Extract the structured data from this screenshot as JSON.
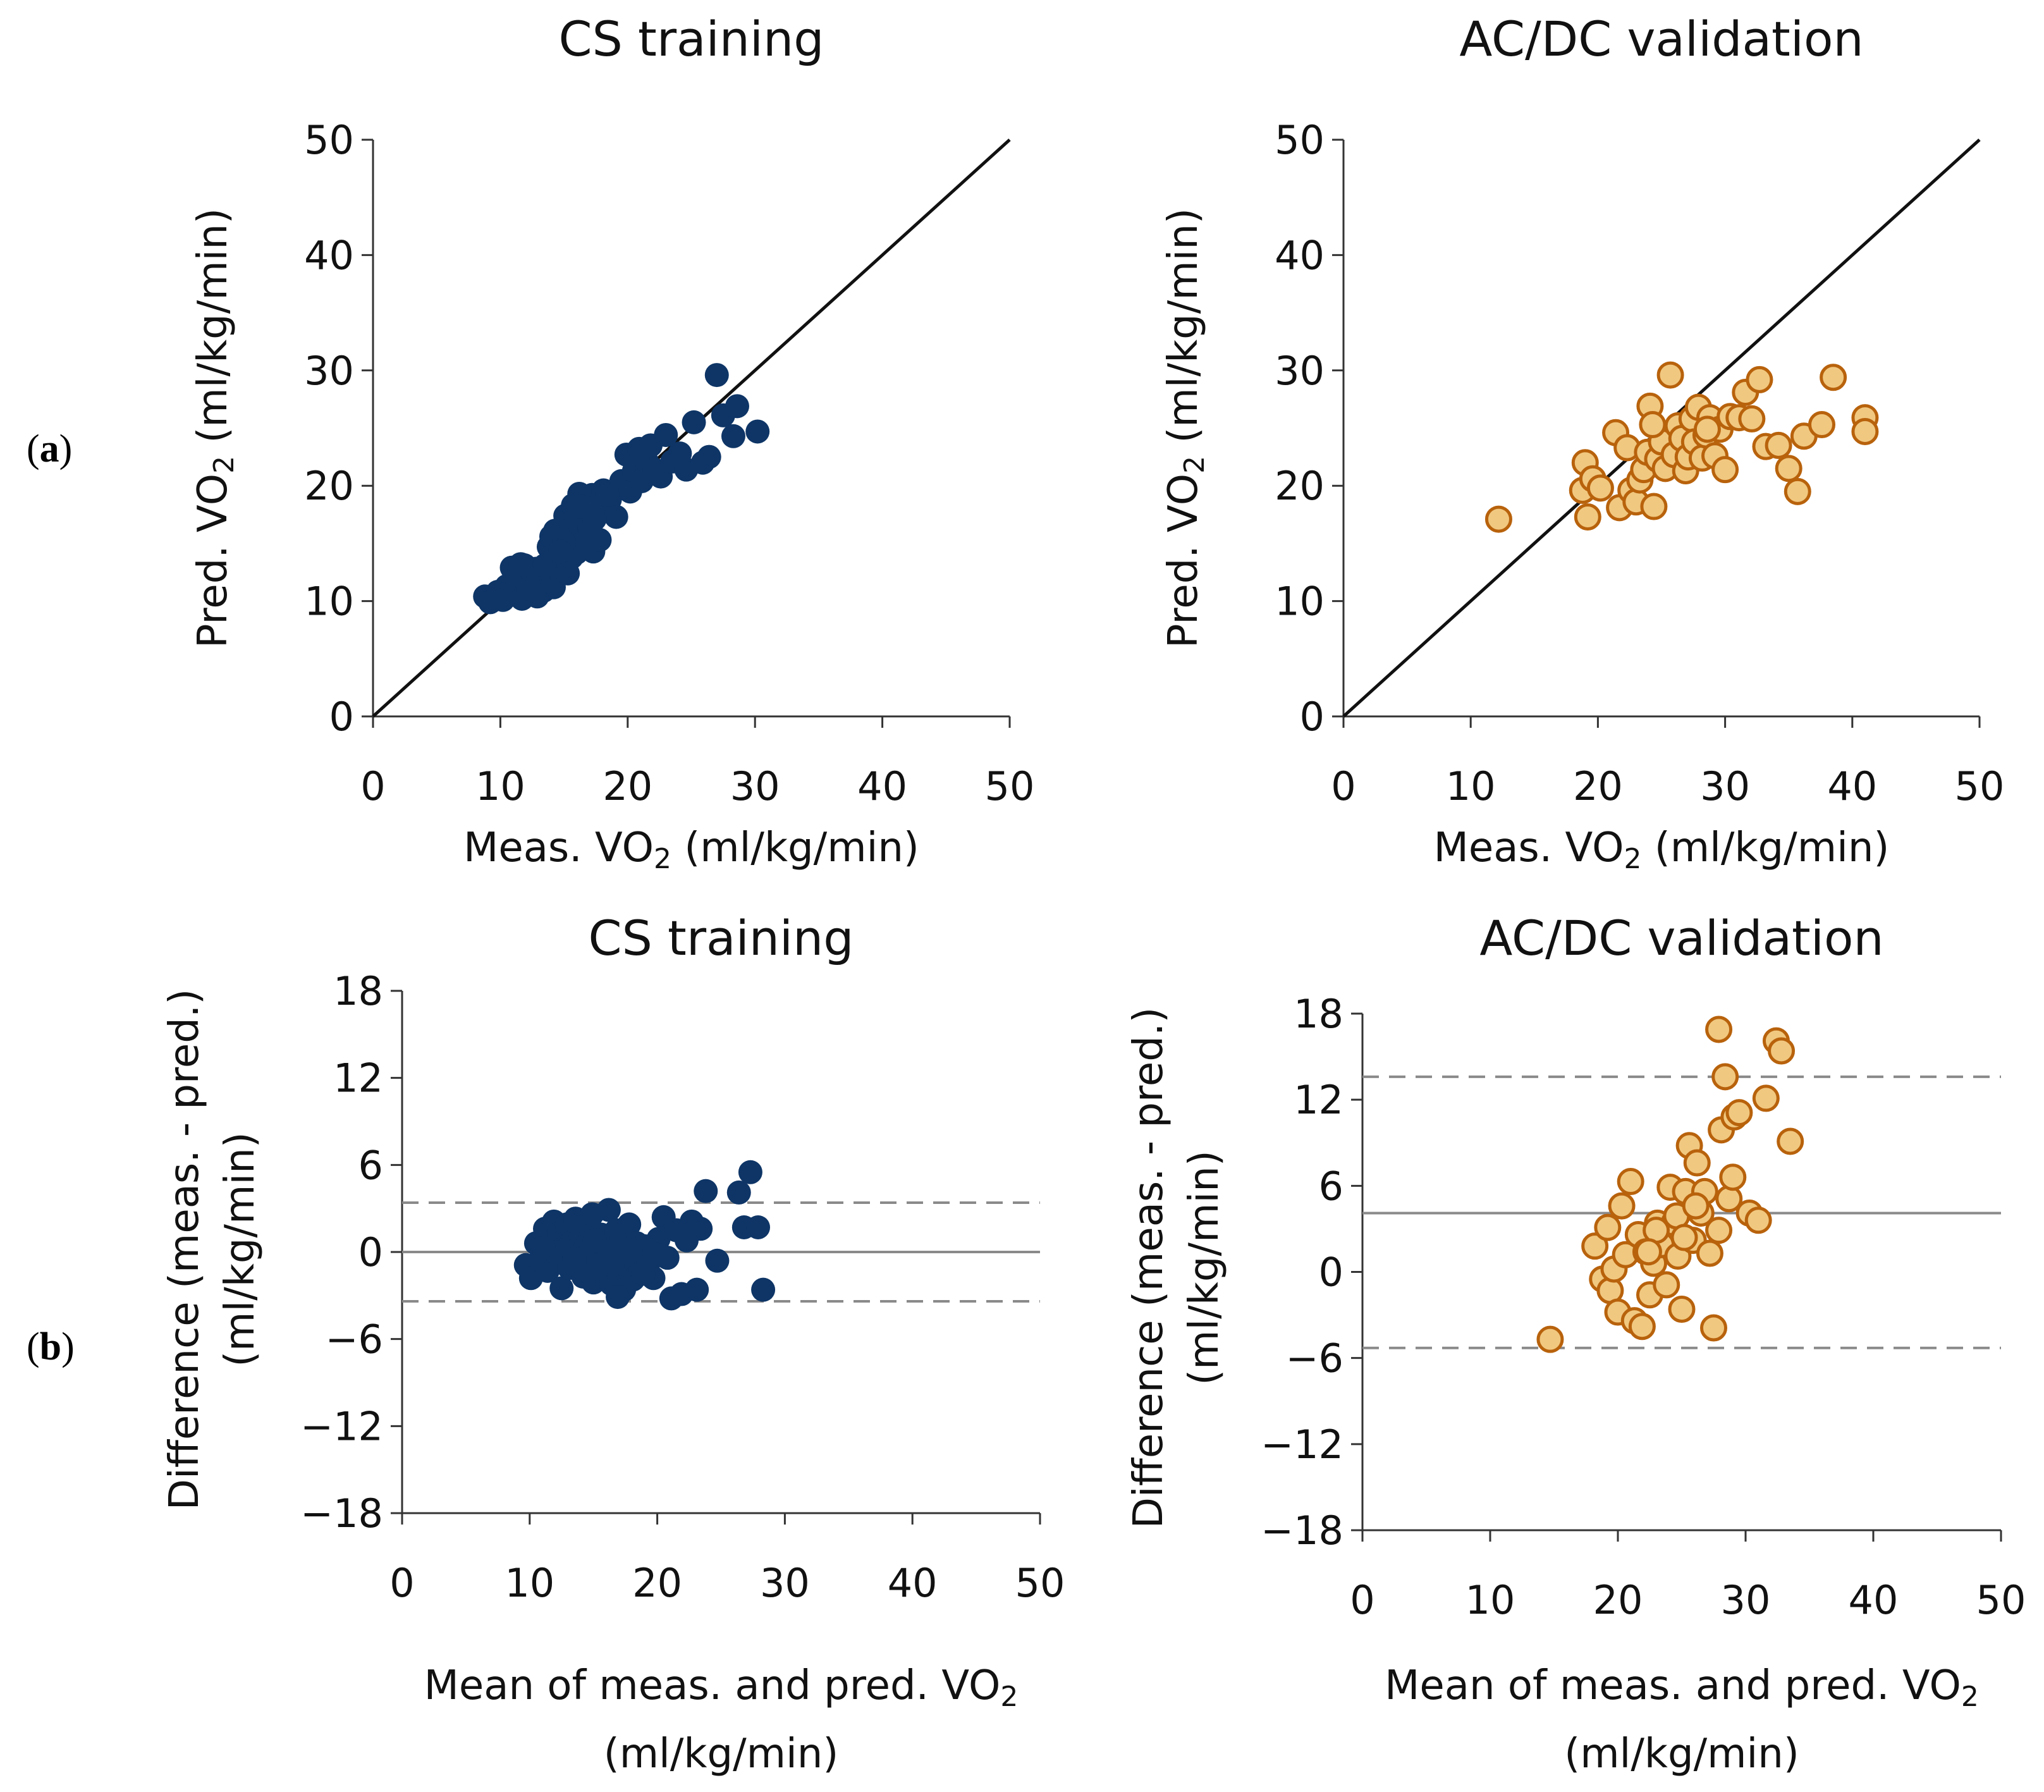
{
  "panel_labels": [
    {
      "open": "(",
      "letter": "a",
      "close": ")"
    },
    {
      "open": "(",
      "letter": "b",
      "close": ")"
    }
  ],
  "colors": {
    "train_fill": "#0e3566",
    "val_fill": "#f1c880",
    "val_edge": "#b8620c",
    "identity_line": "#111111",
    "mean_line": "#8a8a8a",
    "loa_line": "#8a8a8a"
  },
  "chart_data": [
    {
      "id": "a_train",
      "type": "scatter",
      "title": "CS training",
      "xlabel": {
        "pre": "Meas. VO",
        "sub": "2",
        "post": " (ml/kg/min)"
      },
      "ylabel": {
        "pre": "Pred. VO",
        "sub": "2",
        "post": " (ml/kg/min)"
      },
      "xlim": [
        0,
        50
      ],
      "ylim": [
        0,
        50
      ],
      "xticks": [
        "0",
        "10",
        "20",
        "30",
        "40",
        "50"
      ],
      "yticks": [
        "0",
        "10",
        "20",
        "30",
        "40",
        "50"
      ],
      "reference_line": {
        "from": [
          0,
          0
        ],
        "to": [
          50,
          50
        ]
      },
      "points": [
        [
          8.8,
          10.4
        ],
        [
          9.2,
          9.9
        ],
        [
          9.8,
          10.8
        ],
        [
          10.5,
          11.3
        ],
        [
          10.9,
          12.9
        ],
        [
          11.1,
          10.6
        ],
        [
          11.3,
          11.9
        ],
        [
          11.5,
          12.6
        ],
        [
          11.7,
          10.2
        ],
        [
          11.9,
          13.1
        ],
        [
          12.1,
          11.4
        ],
        [
          12.3,
          12.3
        ],
        [
          12.4,
          10.7
        ],
        [
          12.6,
          11.9
        ],
        [
          12.8,
          12.8
        ],
        [
          12.9,
          10.4
        ],
        [
          13.1,
          11.6
        ],
        [
          13.2,
          12.5
        ],
        [
          13.4,
          10.9
        ],
        [
          13.6,
          11.8
        ],
        [
          13.8,
          14.7
        ],
        [
          13.9,
          12.6
        ],
        [
          14.1,
          13.4
        ],
        [
          14.2,
          11.2
        ],
        [
          14.3,
          16.1
        ],
        [
          14.4,
          14.1
        ],
        [
          14.6,
          12.9
        ],
        [
          14.8,
          15.2
        ],
        [
          14.9,
          13.6
        ],
        [
          15.1,
          17.4
        ],
        [
          15.2,
          14.5
        ],
        [
          15.3,
          12.4
        ],
        [
          15.5,
          16.2
        ],
        [
          15.6,
          13.8
        ],
        [
          15.7,
          18.3
        ],
        [
          15.8,
          15.6
        ],
        [
          16.0,
          14.2
        ],
        [
          16.1,
          17.1
        ],
        [
          16.2,
          19.3
        ],
        [
          16.3,
          16.4
        ],
        [
          16.5,
          15.1
        ],
        [
          16.7,
          18.6
        ],
        [
          16.8,
          17.5
        ],
        [
          17.0,
          16.3
        ],
        [
          17.2,
          19.2
        ],
        [
          17.3,
          14.3
        ],
        [
          17.5,
          18.1
        ],
        [
          17.8,
          15.3
        ],
        [
          18.1,
          19.6
        ],
        [
          18.3,
          17.9
        ],
        [
          18.6,
          18.8
        ],
        [
          19.1,
          17.3
        ],
        [
          19.5,
          20.4
        ],
        [
          19.9,
          22.7
        ],
        [
          20.2,
          19.5
        ],
        [
          20.5,
          21.3
        ],
        [
          20.9,
          23.2
        ],
        [
          21.1,
          20.4
        ],
        [
          21.5,
          22.1
        ],
        [
          21.8,
          23.5
        ],
        [
          22.1,
          21.4
        ],
        [
          22.6,
          20.8
        ],
        [
          23.0,
          24.4
        ],
        [
          23.5,
          22.1
        ],
        [
          24.1,
          22.8
        ],
        [
          24.6,
          21.4
        ],
        [
          25.2,
          25.5
        ],
        [
          25.9,
          22.0
        ],
        [
          26.4,
          22.5
        ],
        [
          27.0,
          29.6
        ],
        [
          27.5,
          26.1
        ],
        [
          28.3,
          24.3
        ],
        [
          28.6,
          26.9
        ],
        [
          30.2,
          24.7
        ],
        [
          10.2,
          10.1
        ],
        [
          11.6,
          13.2
        ],
        [
          12.2,
          11.1
        ],
        [
          13.0,
          12.1
        ],
        [
          14.0,
          15.6
        ],
        [
          15.0,
          15.1
        ],
        [
          16.4,
          18.2
        ],
        [
          17.4,
          17.1
        ],
        [
          18.4,
          19.2
        ],
        [
          13.5,
          13.1
        ],
        [
          12.7,
          10.9
        ],
        [
          14.7,
          14.3
        ]
      ]
    },
    {
      "id": "a_val",
      "type": "scatter",
      "title": "AC/DC validation",
      "xlabel": {
        "pre": "Meas. VO",
        "sub": "2",
        "post": " (ml/kg/min)"
      },
      "ylabel": {
        "pre": "Pred. VO",
        "sub": "2",
        "post": " (ml/kg/min)"
      },
      "xlim": [
        0,
        50
      ],
      "ylim": [
        0,
        50
      ],
      "xticks": [
        "0",
        "10",
        "20",
        "30",
        "40",
        "50"
      ],
      "yticks": [
        "0",
        "10",
        "20",
        "30",
        "40",
        "50"
      ],
      "reference_line": {
        "from": [
          0,
          0
        ],
        "to": [
          50,
          50
        ]
      },
      "points": [
        [
          12.2,
          17.1
        ],
        [
          18.8,
          19.6
        ],
        [
          19.0,
          22.0
        ],
        [
          19.2,
          17.3
        ],
        [
          19.6,
          20.6
        ],
        [
          20.2,
          19.8
        ],
        [
          21.4,
          24.6
        ],
        [
          21.7,
          18.1
        ],
        [
          22.3,
          23.3
        ],
        [
          22.6,
          19.6
        ],
        [
          23.0,
          18.6
        ],
        [
          23.3,
          20.5
        ],
        [
          23.6,
          21.4
        ],
        [
          23.9,
          22.9
        ],
        [
          24.1,
          26.9
        ],
        [
          24.4,
          18.2
        ],
        [
          24.7,
          22.3
        ],
        [
          25.0,
          23.8
        ],
        [
          25.3,
          21.5
        ],
        [
          25.7,
          29.6
        ],
        [
          26.0,
          22.7
        ],
        [
          26.3,
          25.2
        ],
        [
          26.6,
          24.1
        ],
        [
          26.9,
          21.3
        ],
        [
          27.1,
          22.5
        ],
        [
          27.4,
          25.8
        ],
        [
          27.6,
          23.8
        ],
        [
          27.9,
          26.8
        ],
        [
          28.2,
          22.4
        ],
        [
          28.5,
          24.4
        ],
        [
          28.8,
          25.9
        ],
        [
          29.2,
          22.6
        ],
        [
          29.6,
          24.9
        ],
        [
          30.0,
          21.4
        ],
        [
          30.4,
          26.0
        ],
        [
          31.1,
          25.9
        ],
        [
          31.6,
          28.1
        ],
        [
          32.1,
          25.8
        ],
        [
          32.7,
          29.2
        ],
        [
          33.2,
          23.4
        ],
        [
          34.2,
          23.5
        ],
        [
          35.0,
          21.5
        ],
        [
          35.7,
          19.5
        ],
        [
          36.2,
          24.3
        ],
        [
          37.6,
          25.3
        ],
        [
          38.5,
          29.4
        ],
        [
          41.0,
          25.9
        ],
        [
          41.0,
          24.7
        ],
        [
          24.3,
          25.3
        ],
        [
          28.6,
          24.9
        ]
      ]
    },
    {
      "id": "b_train",
      "type": "scatter",
      "title": "CS training",
      "xlabel_lines": [
        {
          "pre": "Mean of meas. and pred. VO",
          "sub": "2",
          "post": ""
        },
        {
          "pre": "(ml/kg/min)",
          "sub": "",
          "post": ""
        }
      ],
      "ylabel_lines": [
        "Difference (meas. - pred.)",
        "(ml/kg/min)"
      ],
      "xlim": [
        0,
        50
      ],
      "ylim": [
        -18,
        18
      ],
      "xticks": [
        "0",
        "10",
        "20",
        "30",
        "40",
        "50"
      ],
      "yticks": [
        "−18",
        "−12",
        "−6",
        "0",
        "6",
        "12",
        "18"
      ],
      "mean_diff": 0,
      "limits_of_agreement": [
        3.4,
        -3.4
      ],
      "points": [
        [
          9.7,
          -0.9
        ],
        [
          10.1,
          -1.8
        ],
        [
          10.5,
          0.6
        ],
        [
          10.9,
          -0.4
        ],
        [
          11.2,
          1.6
        ],
        [
          11.4,
          -1.3
        ],
        [
          11.6,
          0.9
        ],
        [
          11.9,
          2.1
        ],
        [
          12.1,
          -0.6
        ],
        [
          12.3,
          1.3
        ],
        [
          12.5,
          -2.5
        ],
        [
          12.7,
          0.3
        ],
        [
          12.9,
          1.9
        ],
        [
          13.1,
          -1.1
        ],
        [
          13.3,
          0.7
        ],
        [
          13.6,
          2.3
        ],
        [
          13.8,
          -0.3
        ],
        [
          14.0,
          1.1
        ],
        [
          14.2,
          -1.7
        ],
        [
          14.4,
          0.4
        ],
        [
          14.6,
          -0.9
        ],
        [
          14.8,
          1.6
        ],
        [
          15.0,
          -2.1
        ],
        [
          15.2,
          0.2
        ],
        [
          15.4,
          -0.7
        ],
        [
          15.6,
          1.2
        ],
        [
          15.8,
          -1.4
        ],
        [
          16.0,
          0.5
        ],
        [
          16.2,
          2.9
        ],
        [
          16.4,
          -2.2
        ],
        [
          16.6,
          -0.2
        ],
        [
          16.8,
          1.5
        ],
        [
          17.0,
          -1.6
        ],
        [
          17.2,
          0.9
        ],
        [
          17.4,
          -2.6
        ],
        [
          17.6,
          -0.5
        ],
        [
          17.8,
          1.9
        ],
        [
          18.1,
          -1.9
        ],
        [
          18.4,
          0.6
        ],
        [
          18.7,
          -1.2
        ],
        [
          19.0,
          0.4
        ],
        [
          19.3,
          -0.8
        ],
        [
          19.7,
          -1.8
        ],
        [
          20.1,
          0.9
        ],
        [
          20.5,
          2.4
        ],
        [
          20.8,
          -0.4
        ],
        [
          21.1,
          -3.2
        ],
        [
          21.5,
          1.5
        ],
        [
          21.9,
          -2.9
        ],
        [
          22.3,
          0.8
        ],
        [
          22.7,
          2.1
        ],
        [
          23.1,
          -2.6
        ],
        [
          23.4,
          1.6
        ],
        [
          23.8,
          4.2
        ],
        [
          24.7,
          -0.6
        ],
        [
          26.4,
          4.1
        ],
        [
          26.8,
          1.7
        ],
        [
          27.3,
          5.5
        ],
        [
          27.9,
          1.7
        ],
        [
          28.3,
          -2.6
        ],
        [
          12.0,
          0.0
        ],
        [
          13.5,
          -0.4
        ],
        [
          15.1,
          0.8
        ],
        [
          16.5,
          -0.9
        ],
        [
          17.9,
          0.1
        ],
        [
          19.9,
          -0.2
        ],
        [
          11.1,
          0.3
        ],
        [
          14.9,
          2.6
        ],
        [
          16.9,
          -3.1
        ],
        [
          18.9,
          -1.5
        ]
      ]
    },
    {
      "id": "b_val",
      "type": "scatter",
      "title": "AC/DC validation",
      "xlabel_lines": [
        {
          "pre": "Mean of meas. and pred. VO",
          "sub": "2",
          "post": ""
        },
        {
          "pre": "(ml/kg/min)",
          "sub": "",
          "post": ""
        }
      ],
      "ylabel_lines": [
        "Difference (meas. - pred.)",
        "(ml/kg/min)"
      ],
      "xlim": [
        0,
        50
      ],
      "ylim": [
        -18,
        18
      ],
      "xticks": [
        "0",
        "10",
        "20",
        "30",
        "40",
        "50"
      ],
      "yticks": [
        "−18",
        "−12",
        "−6",
        "0",
        "6",
        "12",
        "18"
      ],
      "mean_diff": 4.1,
      "limits_of_agreement": [
        13.6,
        -5.3
      ],
      "points": [
        [
          14.7,
          -4.7
        ],
        [
          18.2,
          1.8
        ],
        [
          18.8,
          -0.5
        ],
        [
          19.2,
          3.1
        ],
        [
          19.4,
          -1.3
        ],
        [
          19.7,
          0.2
        ],
        [
          20.0,
          -2.8
        ],
        [
          20.3,
          4.6
        ],
        [
          20.6,
          1.2
        ],
        [
          21.0,
          6.3
        ],
        [
          21.3,
          -3.4
        ],
        [
          21.6,
          2.6
        ],
        [
          21.9,
          -3.8
        ],
        [
          22.2,
          1.4
        ],
        [
          22.5,
          -1.6
        ],
        [
          22.8,
          0.6
        ],
        [
          23.1,
          3.4
        ],
        [
          23.4,
          1.9
        ],
        [
          23.8,
          -0.9
        ],
        [
          24.1,
          5.9
        ],
        [
          24.4,
          3.4
        ],
        [
          24.7,
          1.1
        ],
        [
          25.0,
          -2.6
        ],
        [
          25.3,
          5.6
        ],
        [
          25.6,
          8.8
        ],
        [
          25.9,
          2.2
        ],
        [
          26.2,
          7.6
        ],
        [
          26.5,
          4.1
        ],
        [
          26.8,
          5.6
        ],
        [
          27.2,
          1.3
        ],
        [
          27.5,
          -3.9
        ],
        [
          27.9,
          2.9
        ],
        [
          28.1,
          9.9
        ],
        [
          28.4,
          13.6
        ],
        [
          28.7,
          5.1
        ],
        [
          29.0,
          6.6
        ],
        [
          29.1,
          10.8
        ],
        [
          29.5,
          11.1
        ],
        [
          30.3,
          4.1
        ],
        [
          31.0,
          3.6
        ],
        [
          31.6,
          12.1
        ],
        [
          32.4,
          16.1
        ],
        [
          32.8,
          15.4
        ],
        [
          33.5,
          9.1
        ],
        [
          27.9,
          16.9
        ],
        [
          23.0,
          2.9
        ],
        [
          24.6,
          3.9
        ],
        [
          25.2,
          2.4
        ],
        [
          26.1,
          4.6
        ],
        [
          22.4,
          1.4
        ]
      ]
    }
  ]
}
